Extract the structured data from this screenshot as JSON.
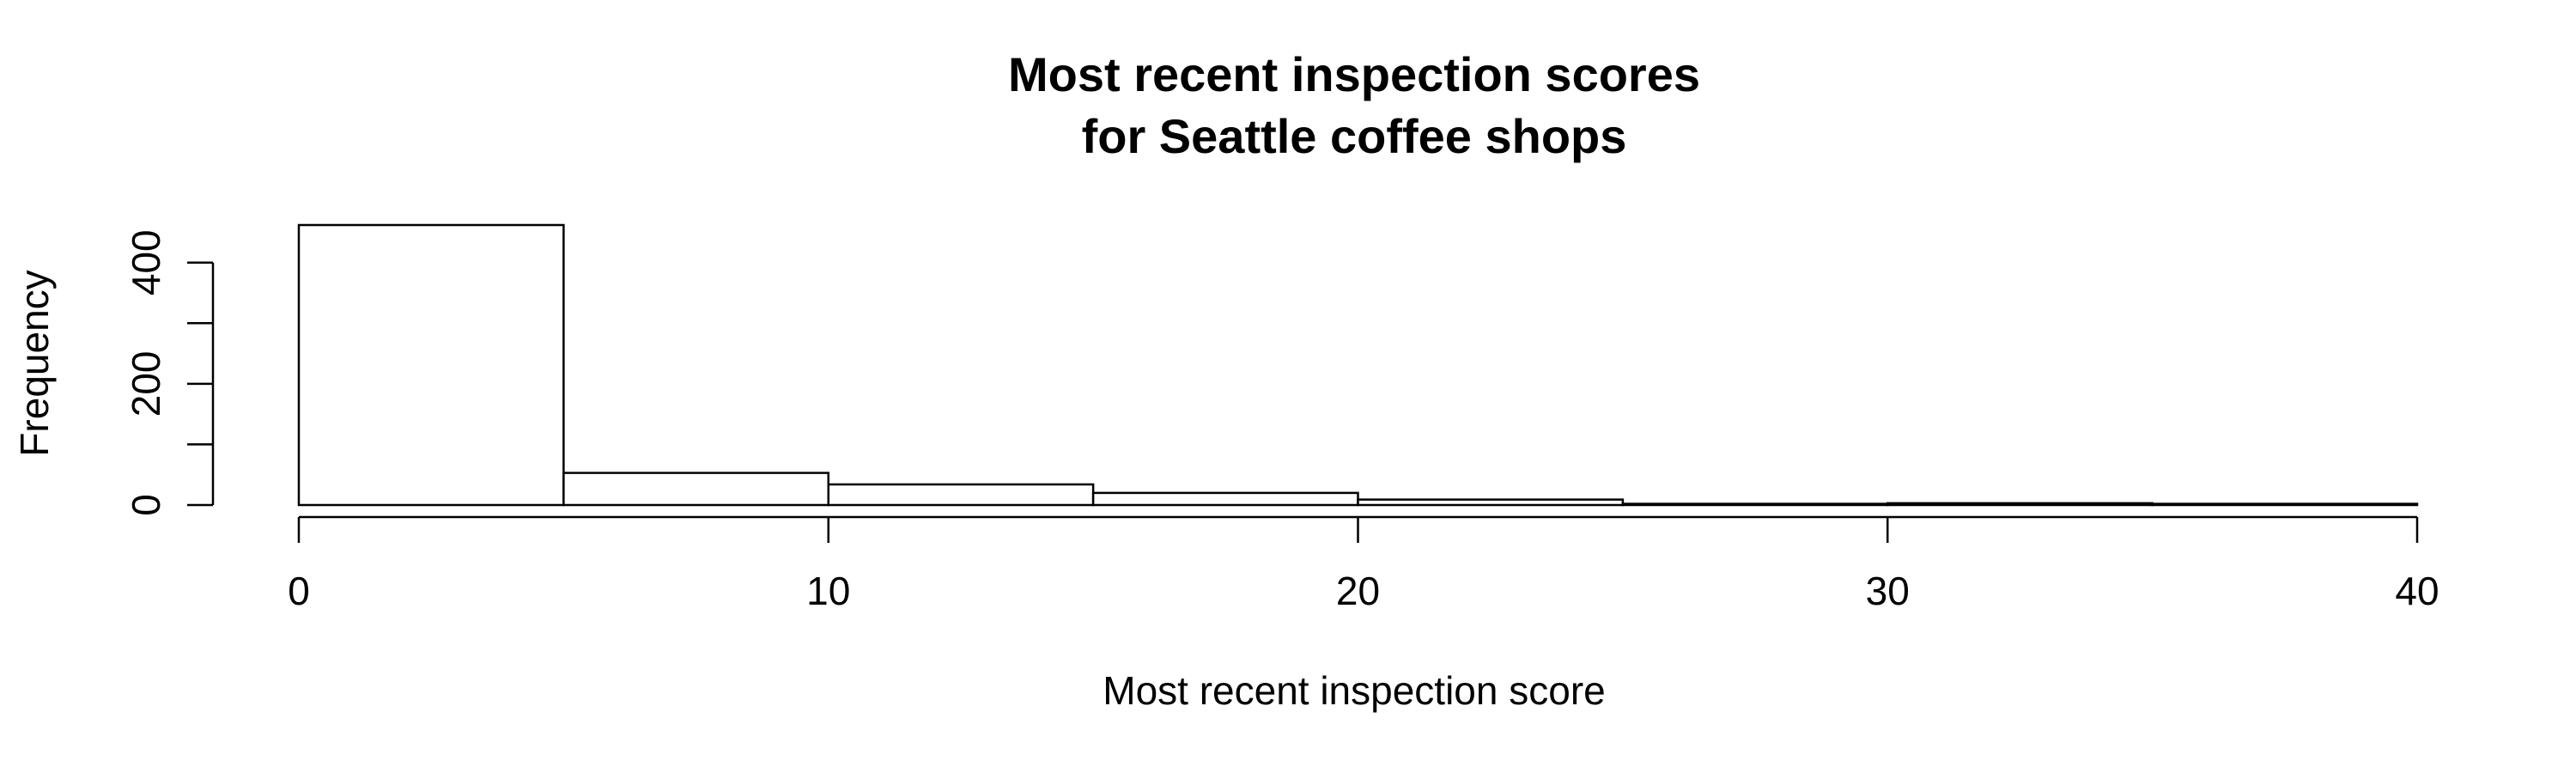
{
  "chart_data": {
    "type": "bar",
    "histogram": true,
    "title_line1": "Most recent inspection scores",
    "title_line2": "for Seattle coffee shops",
    "xlabel": "Most recent inspection score",
    "ylabel": "Frequency",
    "bins": [
      {
        "x0": 0,
        "x1": 5,
        "value": 462
      },
      {
        "x0": 5,
        "x1": 10,
        "value": 53
      },
      {
        "x0": 10,
        "x1": 15,
        "value": 34
      },
      {
        "x0": 15,
        "x1": 20,
        "value": 20
      },
      {
        "x0": 20,
        "x1": 25,
        "value": 9
      },
      {
        "x0": 25,
        "x1": 30,
        "value": 2
      },
      {
        "x0": 30,
        "x1": 35,
        "value": 3
      },
      {
        "x0": 35,
        "x1": 40,
        "value": 2
      }
    ],
    "xlim": [
      0,
      40
    ],
    "ylim": [
      0,
      462
    ],
    "xticks": [
      0,
      10,
      20,
      30,
      40
    ],
    "xtick_labels": [
      "0",
      "10",
      "20",
      "30",
      "40"
    ],
    "yticks": [
      0,
      100,
      200,
      300,
      400
    ],
    "ytick_labels": [
      "0",
      "",
      "200",
      "",
      "400"
    ],
    "grid": false
  }
}
